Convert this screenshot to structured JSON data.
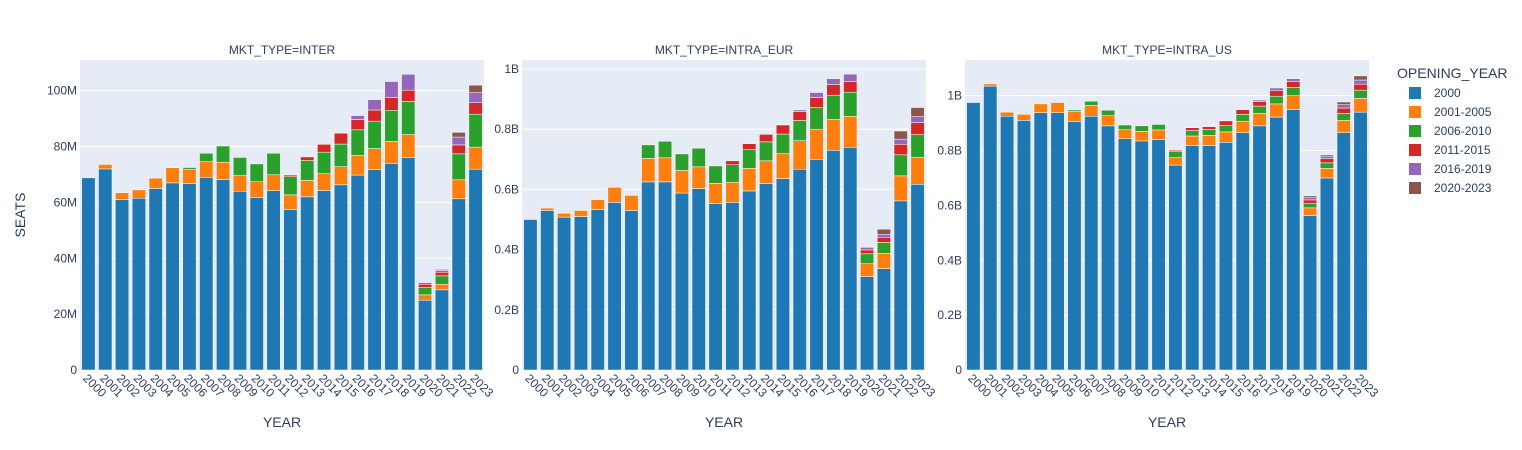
{
  "chart_data": {
    "type": "bar",
    "barmode": "stack",
    "ylabel": "SEATS",
    "xlabel": "YEAR",
    "legend": {
      "title": "OPENING_YEAR",
      "placement": "right"
    },
    "colors": {
      "2000": "#1f77b4",
      "2001-2005": "#ff7f0e",
      "2006-2010": "#2ca02c",
      "2011-2015": "#d62728",
      "2016-2019": "#9467bd",
      "2020-2023": "#8c564b"
    },
    "series_names": [
      "2000",
      "2001-2005",
      "2006-2010",
      "2011-2015",
      "2016-2019",
      "2020-2023"
    ],
    "categories": [
      "2000",
      "2001",
      "2002",
      "2003",
      "2004",
      "2005",
      "2006",
      "2007",
      "2008",
      "2009",
      "2010",
      "2011",
      "2012",
      "2013",
      "2014",
      "2015",
      "2016",
      "2017",
      "2018",
      "2019",
      "2020",
      "2021",
      "2022",
      "2023"
    ],
    "plot_background": "#e5ecf6",
    "grid": true,
    "panels": [
      {
        "title": "MKT_TYPE=INTER",
        "ylim": [
          0,
          111000000
        ],
        "yticks": [
          0,
          20000000,
          40000000,
          60000000,
          80000000,
          100000000
        ],
        "ytick_labels": [
          "0",
          "20M",
          "40M",
          "60M",
          "80M",
          "100M"
        ],
        "series": [
          {
            "name": "2000",
            "values": [
              68800000,
              72000000,
              61000000,
              61500000,
              65000000,
              67000000,
              66800000,
              69000000,
              68200000,
              64000000,
              61800000,
              64300000,
              57500000,
              62000000,
              64300000,
              66300000,
              69800000,
              71800000,
              74000000,
              76000000,
              25000000,
              28700000,
              61300000,
              71900000
            ]
          },
          {
            "name": "2001-2005",
            "values": [
              0,
              1600000,
              2500000,
              3000000,
              3700000,
              5400000,
              5100000,
              5600000,
              6200000,
              5600000,
              5600000,
              5600000,
              5200000,
              5900000,
              6000000,
              6500000,
              7100000,
              7500000,
              7900000,
              8300000,
              1900000,
              2000000,
              6800000,
              7900000
            ]
          },
          {
            "name": "2006-2010",
            "values": [
              0,
              0,
              0,
              0,
              0,
              0,
              600000,
              3000000,
              5800000,
              6500000,
              6400000,
              7700000,
              6500000,
              7100000,
              7700000,
              8100000,
              9100000,
              9800000,
              11100000,
              11900000,
              2600000,
              3000000,
              9300000,
              11800000
            ]
          },
          {
            "name": "2011-2015",
            "values": [
              0,
              0,
              0,
              0,
              0,
              0,
              0,
              0,
              0,
              0,
              0,
              0,
              600000,
              1300000,
              2800000,
              3900000,
              3700000,
              4000000,
              4600000,
              4000000,
              1200000,
              1300000,
              3200000,
              4100000
            ]
          },
          {
            "name": "2016-2019",
            "values": [
              0,
              0,
              0,
              0,
              0,
              0,
              0,
              0,
              0,
              0,
              0,
              0,
              0,
              0,
              0,
              0,
              1400000,
              3700000,
              5700000,
              5700000,
              600000,
              700000,
              2800000,
              3600000
            ]
          },
          {
            "name": "2020-2023",
            "values": [
              0,
              0,
              0,
              0,
              0,
              0,
              0,
              0,
              0,
              0,
              0,
              0,
              0,
              0,
              0,
              0,
              0,
              0,
              0,
              0,
              0,
              300000,
              1700000,
              2700000
            ]
          }
        ]
      },
      {
        "title": "MKT_TYPE=INTRA_EUR",
        "ylim": [
          0,
          1030000000
        ],
        "yticks": [
          0,
          200000000,
          400000000,
          600000000,
          800000000,
          1000000000
        ],
        "ytick_labels": [
          "0",
          "0.2B",
          "0.4B",
          "0.6B",
          "0.8B",
          "1B"
        ],
        "series": [
          {
            "name": "2000",
            "values": [
              500000000,
              530000000,
              508000000,
              510000000,
              533000000,
              557000000,
              530000000,
              625000000,
              625000000,
              588000000,
              603000000,
              553000000,
              557000000,
              595000000,
              620000000,
              636000000,
              667000000,
              700000000,
              730000000,
              740000000,
              310000000,
              337000000,
              562000000,
              617000000
            ]
          },
          {
            "name": "2001-2005",
            "values": [
              0,
              8000000,
              13000000,
              20000000,
              33000000,
              50000000,
              50000000,
              78000000,
              80000000,
              75000000,
              72000000,
              67000000,
              67000000,
              75000000,
              75000000,
              83000000,
              95000000,
              100000000,
              103000000,
              103000000,
              43000000,
              50000000,
              83000000,
              90000000
            ]
          },
          {
            "name": "2006-2010",
            "values": [
              0,
              0,
              0,
              0,
              0,
              0,
              0,
              45000000,
              55000000,
              55000000,
              62000000,
              58000000,
              58000000,
              62000000,
              63000000,
              65000000,
              67000000,
              72000000,
              80000000,
              80000000,
              33000000,
              37000000,
              70000000,
              75000000
            ]
          },
          {
            "name": "2011-2015",
            "values": [
              0,
              0,
              0,
              0,
              0,
              0,
              0,
              0,
              0,
              0,
              0,
              0,
              13000000,
              20000000,
              25000000,
              30000000,
              30000000,
              33000000,
              35000000,
              35000000,
              13000000,
              17000000,
              35000000,
              40000000
            ]
          },
          {
            "name": "2016-2019",
            "values": [
              0,
              0,
              0,
              0,
              0,
              0,
              0,
              0,
              0,
              0,
              0,
              0,
              0,
              0,
              0,
              0,
              5000000,
              17000000,
              20000000,
              25000000,
              8000000,
              10000000,
              17000000,
              20000000
            ]
          },
          {
            "name": "2020-2023",
            "values": [
              0,
              0,
              0,
              0,
              0,
              0,
              0,
              0,
              0,
              0,
              0,
              0,
              0,
              0,
              0,
              0,
              0,
              0,
              0,
              0,
              3000000,
              17000000,
              27000000,
              30000000
            ]
          }
        ]
      },
      {
        "title": "MKT_TYPE=INTRA_US",
        "ylim": [
          0,
          1130000000
        ],
        "yticks": [
          0,
          200000000,
          400000000,
          600000000,
          800000000,
          1000000000
        ],
        "ytick_labels": [
          "0",
          "0.2B",
          "0.4B",
          "0.6B",
          "0.8B",
          "1B"
        ],
        "series": [
          {
            "name": "2000",
            "values": [
              975000000,
              1035000000,
              925000000,
              910000000,
              938000000,
              938000000,
              905000000,
              925000000,
              890000000,
              843000000,
              835000000,
              840000000,
              747000000,
              818000000,
              818000000,
              830000000,
              865000000,
              890000000,
              922000000,
              950000000,
              563000000,
              700000000,
              865000000,
              940000000
            ]
          },
          {
            "name": "2001-2005",
            "values": [
              0,
              8000000,
              15000000,
              22000000,
              32000000,
              37000000,
              38000000,
              40000000,
              37000000,
              33000000,
              35000000,
              35000000,
              27000000,
              35000000,
              37000000,
              38000000,
              42000000,
              45000000,
              48000000,
              50000000,
              28000000,
              35000000,
              45000000,
              50000000
            ]
          },
          {
            "name": "2006-2010",
            "values": [
              0,
              0,
              0,
              0,
              0,
              0,
              5000000,
              15000000,
              20000000,
              17000000,
              20000000,
              20000000,
              22000000,
              20000000,
              22000000,
              23000000,
              25000000,
              27000000,
              28000000,
              30000000,
              17000000,
              20000000,
              25000000,
              30000000
            ]
          },
          {
            "name": "2011-2015",
            "values": [
              0,
              0,
              0,
              0,
              0,
              0,
              0,
              0,
              0,
              0,
              0,
              0,
              5000000,
              10000000,
              10000000,
              17000000,
              17000000,
              17000000,
              20000000,
              22000000,
              12000000,
              15000000,
              20000000,
              22000000
            ]
          },
          {
            "name": "2016-2019",
            "values": [
              0,
              0,
              0,
              0,
              0,
              0,
              0,
              0,
              0,
              0,
              0,
              0,
              0,
              0,
              0,
              0,
              0,
              5000000,
              10000000,
              10000000,
              10000000,
              10000000,
              12000000,
              15000000
            ]
          },
          {
            "name": "2020-2023",
            "values": [
              0,
              0,
              0,
              0,
              0,
              0,
              0,
              0,
              0,
              0,
              0,
              0,
              0,
              0,
              0,
              0,
              0,
              0,
              0,
              0,
              5000000,
              5000000,
              10000000,
              15000000
            ]
          }
        ]
      }
    ]
  }
}
